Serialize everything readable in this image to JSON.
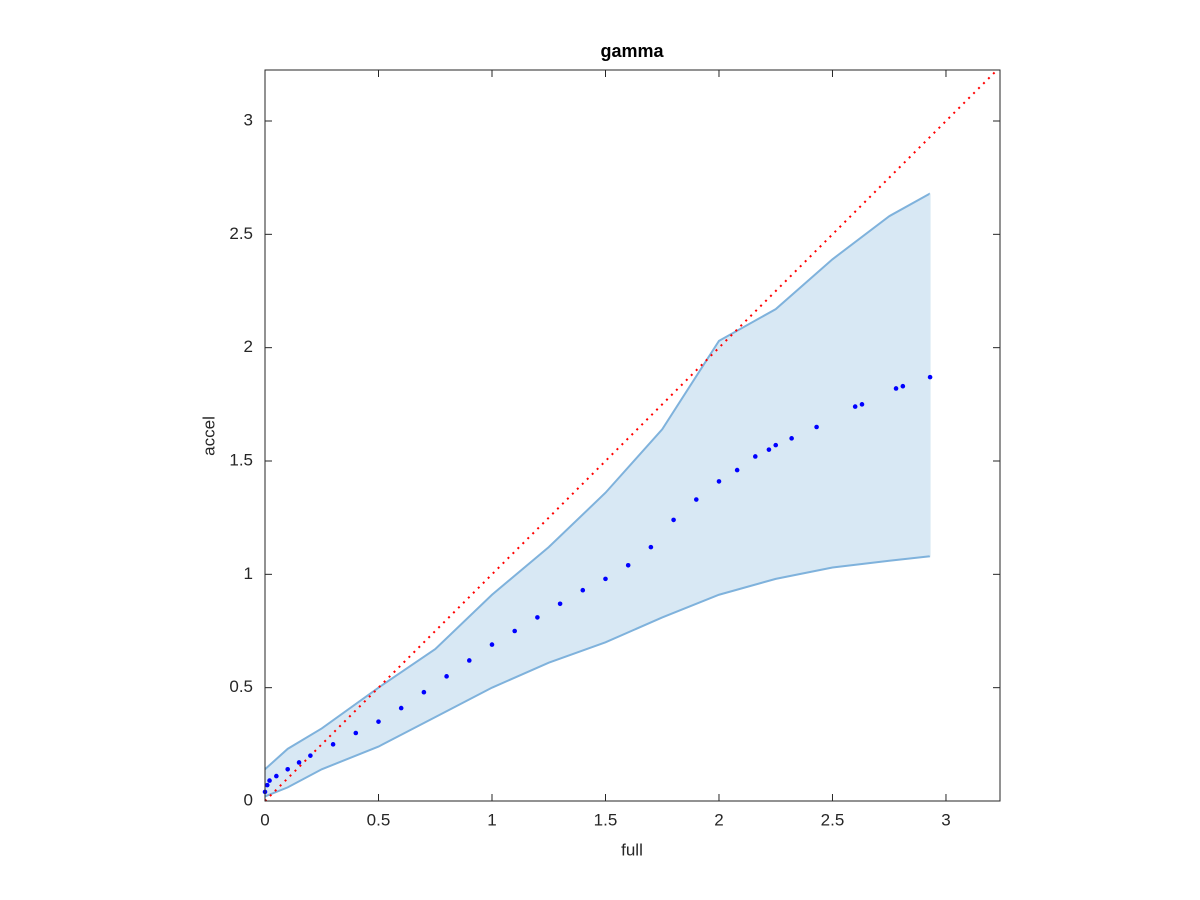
{
  "chart_data": {
    "type": "scatter",
    "title": "gamma",
    "x_label": "full",
    "y_label": "accel",
    "xlim": [
      0,
      3.238
    ],
    "ylim": [
      0,
      3.225
    ],
    "xticks": [
      0,
      0.5,
      1,
      1.5,
      2,
      2.5,
      3
    ],
    "yticks": [
      0,
      0.5,
      1,
      1.5,
      2,
      2.5,
      3
    ],
    "x": [
      0,
      0.01,
      0.02,
      0.05,
      0.1,
      0.15,
      0.2,
      0.3,
      0.4,
      0.5,
      0.6,
      0.7,
      0.8,
      0.9,
      1.0,
      1.1,
      1.2,
      1.3,
      1.4,
      1.5,
      1.6,
      1.7,
      1.8,
      1.9,
      2.0,
      2.08,
      2.16,
      2.22,
      2.25,
      2.32,
      2.43,
      2.6,
      2.63,
      2.78,
      2.81,
      2.93
    ],
    "values": [
      0.04,
      0.07,
      0.09,
      0.11,
      0.14,
      0.17,
      0.2,
      0.25,
      0.3,
      0.35,
      0.41,
      0.48,
      0.55,
      0.62,
      0.69,
      0.75,
      0.81,
      0.87,
      0.93,
      0.98,
      1.04,
      1.12,
      1.24,
      1.33,
      1.41,
      1.46,
      1.52,
      1.55,
      1.57,
      1.6,
      1.65,
      1.74,
      1.75,
      1.82,
      1.83,
      1.87
    ],
    "color": "#0000ff",
    "band": {
      "x": [
        0,
        0.1,
        0.25,
        0.5,
        0.75,
        1.0,
        1.25,
        1.5,
        1.75,
        2.0,
        2.25,
        2.5,
        2.75,
        2.93
      ],
      "upper": [
        0.14,
        0.23,
        0.32,
        0.5,
        0.67,
        0.91,
        1.12,
        1.36,
        1.64,
        2.03,
        2.17,
        2.39,
        2.58,
        2.68
      ],
      "lower": [
        0.02,
        0.06,
        0.14,
        0.24,
        0.37,
        0.5,
        0.61,
        0.7,
        0.81,
        0.91,
        0.98,
        1.03,
        1.06,
        1.08
      ],
      "color": "#7fb2dc",
      "fill": "#d8e8f4"
    },
    "reference_line_color": "#ff0000"
  }
}
